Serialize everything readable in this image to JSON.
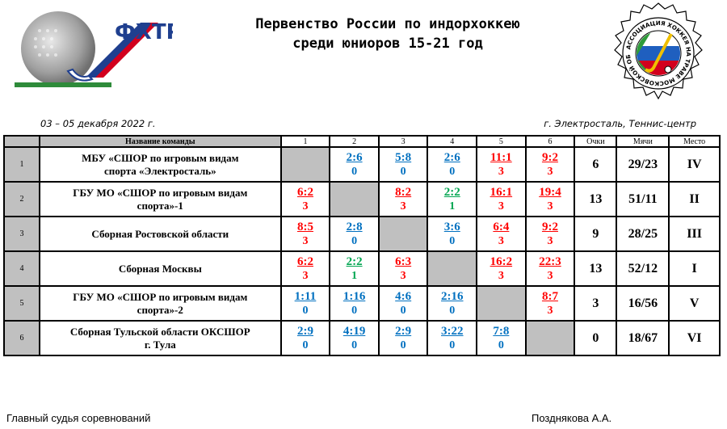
{
  "header": {
    "logo_left_text": "ФХТР",
    "logo_right_text": "АССОЦИАЦИЯ ХОККЕЯ НА ТРАВЕ МОСКОВСКОЙ ОБЛАСТИ",
    "title_line1": "Первенство России по индорхоккею",
    "title_line2": "среди юниоров 15-21 год"
  },
  "meta": {
    "date": "03 – 05 декабря 2022 г.",
    "place": "г. Электросталь, Теннис-центр"
  },
  "table": {
    "headers": {
      "name": "Название команды",
      "cols": [
        "1",
        "2",
        "3",
        "4",
        "5",
        "6"
      ],
      "points": "Очки",
      "balls": "Мячи",
      "place": "Место"
    },
    "rows": [
      {
        "num": "1",
        "team_line1": "МБУ «СШОР по игровым видам",
        "team_line2": "спорта «Электросталь»",
        "cells": [
          null,
          {
            "score": "2:6",
            "pts": "0",
            "color": "blue"
          },
          {
            "score": "5:8",
            "pts": "0",
            "color": "blue"
          },
          {
            "score": "2:6",
            "pts": "0",
            "color": "blue"
          },
          {
            "score": "11:1",
            "pts": "3",
            "color": "red"
          },
          {
            "score": "9:2",
            "pts": "3",
            "color": "red"
          }
        ],
        "points": "6",
        "balls": "29/23",
        "place": "IV"
      },
      {
        "num": "2",
        "team_line1": "ГБУ МО «СШОР по игровым видам",
        "team_line2": "спорта»-1",
        "cells": [
          {
            "score": "6:2",
            "pts": "3",
            "color": "red"
          },
          null,
          {
            "score": "8:2",
            "pts": "3",
            "color": "red"
          },
          {
            "score": "2:2",
            "pts": "1",
            "color": "green"
          },
          {
            "score": "16:1",
            "pts": "3",
            "color": "red"
          },
          {
            "score": "19:4",
            "pts": "3",
            "color": "red"
          }
        ],
        "points": "13",
        "balls": "51/11",
        "place": "II"
      },
      {
        "num": "3",
        "team_line1": "Сборная Ростовской области",
        "team_line2": "",
        "cells": [
          {
            "score": "8:5",
            "pts": "3",
            "color": "red"
          },
          {
            "score": "2:8",
            "pts": "0",
            "color": "blue"
          },
          null,
          {
            "score": "3:6",
            "pts": "0",
            "color": "blue"
          },
          {
            "score": "6:4",
            "pts": "3",
            "color": "red"
          },
          {
            "score": "9:2",
            "pts": "3",
            "color": "red"
          }
        ],
        "points": "9",
        "balls": "28/25",
        "place": "III"
      },
      {
        "num": "4",
        "team_line1": "Сборная Москвы",
        "team_line2": "",
        "cells": [
          {
            "score": "6:2",
            "pts": "3",
            "color": "red"
          },
          {
            "score": "2:2",
            "pts": "1",
            "color": "green"
          },
          {
            "score": "6:3",
            "pts": "3",
            "color": "red"
          },
          null,
          {
            "score": "16:2",
            "pts": "3",
            "color": "red"
          },
          {
            "score": "22:3",
            "pts": "3",
            "color": "red"
          }
        ],
        "points": "13",
        "balls": "52/12",
        "place": "I"
      },
      {
        "num": "5",
        "team_line1": "ГБУ МО «СШОР по игровым видам",
        "team_line2": "спорта»-2",
        "cells": [
          {
            "score": "1:11",
            "pts": "0",
            "color": "blue"
          },
          {
            "score": "1:16",
            "pts": "0",
            "color": "blue"
          },
          {
            "score": "4:6",
            "pts": "0",
            "color": "blue"
          },
          {
            "score": "2:16",
            "pts": "0",
            "color": "blue"
          },
          null,
          {
            "score": "8:7",
            "pts": "3",
            "color": "red"
          }
        ],
        "points": "3",
        "balls": "16/56",
        "place": "V"
      },
      {
        "num": "6",
        "team_line1": "Сборная Тульской области ОКСШОР",
        "team_line2": "г. Тула",
        "cells": [
          {
            "score": "2:9",
            "pts": "0",
            "color": "blue"
          },
          {
            "score": "4:19",
            "pts": "0",
            "color": "blue"
          },
          {
            "score": "2:9",
            "pts": "0",
            "color": "blue"
          },
          {
            "score": "3:22",
            "pts": "0",
            "color": "blue"
          },
          {
            "score": "7:8",
            "pts": "0",
            "color": "blue"
          },
          null
        ],
        "points": "0",
        "balls": "18/67",
        "place": "VI"
      }
    ]
  },
  "footer": {
    "judge_label": "Главный судья соревнований",
    "judge_name": "Позднякова А.А."
  },
  "colors": {
    "win": "#ff0000",
    "loss": "#0070c0",
    "draw": "#00a550",
    "shade": "#c0c0c0"
  }
}
